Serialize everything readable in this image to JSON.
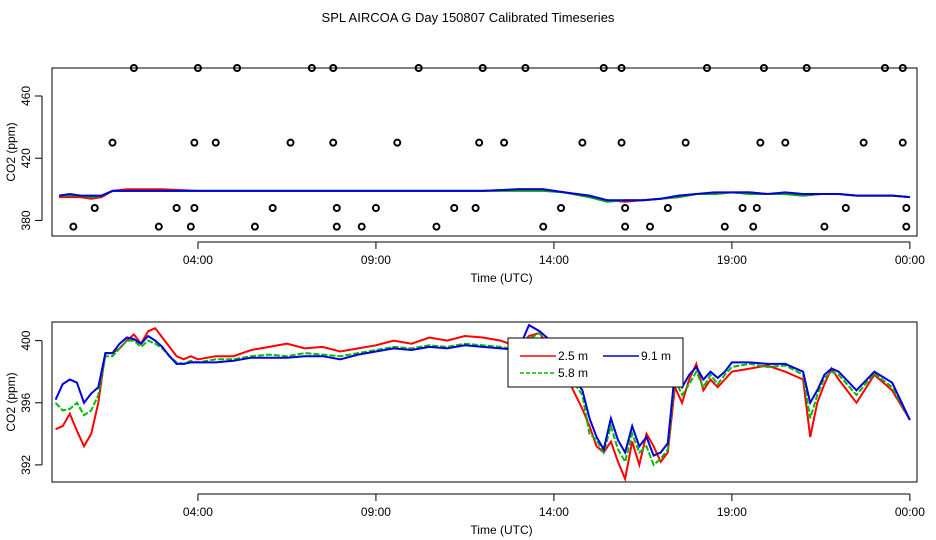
{
  "figure": {
    "title": "SPL AIRCOA G  Day 150807  Calibrated Timeseries"
  },
  "chart_data": [
    {
      "type": "line",
      "xlabel": "Time (UTC)",
      "ylabel": "CO2 (ppm)",
      "x_tick_labels": [
        "04:00",
        "09:00",
        "14:00",
        "19:00",
        "00:00"
      ],
      "x_tick_hours": [
        4,
        9,
        14,
        19,
        24
      ],
      "xlim_hours": [
        -0.1,
        24.2
      ],
      "ylim": [
        370,
        478
      ],
      "y_ticks": [
        380,
        420,
        460
      ],
      "series": [
        {
          "color": "#ff0000",
          "x": [
            0.1,
            0.4,
            0.7,
            1.0,
            1.3,
            1.6,
            2.0,
            3.0,
            4.0,
            5.0,
            6.0,
            7.0,
            8.0,
            9.0,
            10.0,
            11.0,
            12.0,
            13.0,
            13.7,
            14.3,
            15.0,
            15.5,
            16.0,
            16.5,
            17.0,
            17.5,
            18.0,
            18.5,
            19.0,
            19.5,
            20.0,
            20.5,
            21.0,
            21.5,
            22.0,
            22.5,
            23.0,
            23.5,
            24.0
          ],
          "values": [
            395,
            395,
            395,
            394,
            395,
            399,
            400,
            400,
            399,
            399,
            399,
            399,
            399,
            399,
            399,
            399,
            399,
            400,
            400,
            398,
            395,
            393,
            392,
            393,
            394,
            395,
            397,
            397,
            398,
            398,
            397,
            397,
            396,
            397,
            397,
            396,
            396,
            396,
            395
          ]
        },
        {
          "color": "#00aa00",
          "x": [
            0.1,
            0.4,
            0.7,
            1.0,
            1.3,
            1.6,
            2.0,
            3.0,
            4.0,
            5.0,
            6.0,
            7.0,
            8.0,
            9.0,
            10.0,
            11.0,
            12.0,
            13.0,
            13.7,
            14.3,
            15.0,
            15.5,
            16.0,
            16.5,
            17.0,
            17.5,
            18.0,
            18.5,
            19.0,
            19.5,
            20.0,
            20.5,
            21.0,
            21.5,
            22.0,
            22.5,
            23.0,
            23.5,
            24.0
          ],
          "values": [
            396,
            396,
            396,
            395,
            396,
            399,
            399,
            399,
            399,
            399,
            399,
            399,
            399,
            399,
            399,
            399,
            399,
            399,
            399,
            398,
            395,
            392,
            393,
            393,
            394,
            395,
            397,
            397,
            398,
            397,
            397,
            397,
            396,
            397,
            397,
            396,
            396,
            396,
            395
          ]
        },
        {
          "color": "#0000dd",
          "x": [
            0.1,
            0.4,
            0.7,
            1.0,
            1.3,
            1.6,
            2.0,
            3.0,
            4.0,
            5.0,
            6.0,
            7.0,
            8.0,
            9.0,
            10.0,
            11.0,
            12.0,
            13.0,
            13.7,
            14.3,
            15.0,
            15.5,
            16.0,
            16.5,
            17.0,
            17.5,
            18.0,
            18.5,
            19.0,
            19.5,
            20.0,
            20.5,
            21.0,
            21.5,
            22.0,
            22.5,
            23.0,
            23.5,
            24.0
          ],
          "values": [
            396,
            397,
            396,
            396,
            396,
            399,
            399,
            399,
            399,
            399,
            399,
            399,
            399,
            399,
            399,
            399,
            399,
            400,
            400,
            398,
            396,
            393,
            393,
            393,
            394,
            396,
            397,
            398,
            398,
            398,
            397,
            398,
            397,
            397,
            397,
            396,
            396,
            396,
            395
          ]
        }
      ],
      "points": [
        {
          "x": 0.5,
          "y": 376
        },
        {
          "x": 1.1,
          "y": 388
        },
        {
          "x": 1.6,
          "y": 430
        },
        {
          "x": 2.2,
          "y": 478
        },
        {
          "x": 2.9,
          "y": 376
        },
        {
          "x": 3.4,
          "y": 388
        },
        {
          "x": 3.8,
          "y": 376
        },
        {
          "x": 3.9,
          "y": 388
        },
        {
          "x": 3.9,
          "y": 430
        },
        {
          "x": 4.0,
          "y": 478
        },
        {
          "x": 4.5,
          "y": 430
        },
        {
          "x": 5.1,
          "y": 478
        },
        {
          "x": 5.6,
          "y": 376
        },
        {
          "x": 6.1,
          "y": 388
        },
        {
          "x": 6.6,
          "y": 430
        },
        {
          "x": 7.2,
          "y": 478
        },
        {
          "x": 7.8,
          "y": 478
        },
        {
          "x": 7.8,
          "y": 430
        },
        {
          "x": 7.9,
          "y": 388
        },
        {
          "x": 7.9,
          "y": 376
        },
        {
          "x": 8.6,
          "y": 376
        },
        {
          "x": 9.0,
          "y": 388
        },
        {
          "x": 9.6,
          "y": 430
        },
        {
          "x": 10.2,
          "y": 478
        },
        {
          "x": 10.7,
          "y": 376
        },
        {
          "x": 11.2,
          "y": 388
        },
        {
          "x": 11.8,
          "y": 388
        },
        {
          "x": 11.9,
          "y": 430
        },
        {
          "x": 12.0,
          "y": 478
        },
        {
          "x": 12.6,
          "y": 430
        },
        {
          "x": 13.2,
          "y": 478
        },
        {
          "x": 13.7,
          "y": 376
        },
        {
          "x": 14.2,
          "y": 388
        },
        {
          "x": 14.8,
          "y": 430
        },
        {
          "x": 15.4,
          "y": 478
        },
        {
          "x": 15.9,
          "y": 478
        },
        {
          "x": 15.9,
          "y": 430
        },
        {
          "x": 16.0,
          "y": 388
        },
        {
          "x": 16.0,
          "y": 376
        },
        {
          "x": 16.7,
          "y": 376
        },
        {
          "x": 17.2,
          "y": 388
        },
        {
          "x": 17.7,
          "y": 430
        },
        {
          "x": 18.3,
          "y": 478
        },
        {
          "x": 18.8,
          "y": 376
        },
        {
          "x": 19.3,
          "y": 388
        },
        {
          "x": 19.6,
          "y": 376
        },
        {
          "x": 19.7,
          "y": 388
        },
        {
          "x": 19.8,
          "y": 430
        },
        {
          "x": 19.9,
          "y": 478
        },
        {
          "x": 20.5,
          "y": 430
        },
        {
          "x": 21.1,
          "y": 478
        },
        {
          "x": 21.6,
          "y": 376
        },
        {
          "x": 22.2,
          "y": 388
        },
        {
          "x": 22.7,
          "y": 430
        },
        {
          "x": 23.3,
          "y": 478
        },
        {
          "x": 23.8,
          "y": 478
        },
        {
          "x": 23.8,
          "y": 430
        },
        {
          "x": 23.9,
          "y": 388
        },
        {
          "x": 23.9,
          "y": 376
        }
      ]
    },
    {
      "type": "line",
      "xlabel": "Time (UTC)",
      "ylabel": "CO2 (ppm)",
      "x_tick_labels": [
        "04:00",
        "09:00",
        "14:00",
        "19:00",
        "00:00"
      ],
      "x_tick_hours": [
        4,
        9,
        14,
        19,
        24
      ],
      "xlim_hours": [
        -0.1,
        24.2
      ],
      "ylim": [
        390.9,
        401.2
      ],
      "y_ticks": [
        392,
        396,
        400
      ],
      "legend_placement": "top-center-right",
      "series": [
        {
          "name": "2.5 m",
          "color": "#ff0000",
          "x": [
            0.0,
            0.2,
            0.4,
            0.6,
            0.8,
            1.0,
            1.2,
            1.4,
            1.6,
            1.8,
            2.0,
            2.2,
            2.4,
            2.6,
            2.8,
            3.0,
            3.2,
            3.4,
            3.6,
            3.8,
            4.0,
            4.5,
            5.0,
            5.5,
            6.0,
            6.5,
            7.0,
            7.5,
            8.0,
            8.5,
            9.0,
            9.5,
            10.0,
            10.5,
            11.0,
            11.5,
            12.0,
            12.5,
            13.0,
            13.3,
            13.6,
            13.9,
            14.2,
            14.5,
            14.8,
            15.0,
            15.2,
            15.4,
            15.6,
            15.8,
            16.0,
            16.2,
            16.4,
            16.6,
            16.8,
            17.0,
            17.2,
            17.4,
            17.6,
            17.8,
            18.0,
            18.2,
            18.4,
            18.6,
            18.8,
            19.0,
            19.5,
            20.0,
            20.5,
            21.0,
            21.2,
            21.4,
            21.6,
            21.8,
            22.0,
            22.5,
            23.0,
            23.5,
            24.0
          ],
          "values": [
            394.3,
            394.5,
            395.3,
            394.2,
            393.2,
            394.0,
            396.0,
            399.2,
            399.2,
            399.5,
            400.0,
            400.4,
            399.8,
            400.6,
            400.8,
            400.2,
            399.6,
            399.0,
            398.8,
            399.0,
            398.8,
            399.0,
            399.0,
            399.4,
            399.6,
            399.8,
            399.5,
            399.6,
            399.3,
            399.5,
            399.7,
            400.0,
            399.8,
            400.2,
            400.0,
            400.3,
            400.2,
            400.0,
            399.6,
            400.3,
            400.5,
            399.3,
            398.0,
            397.0,
            395.6,
            394.5,
            393.2,
            392.8,
            393.5,
            392.2,
            391.1,
            393.5,
            392.0,
            394.0,
            393.2,
            392.2,
            392.8,
            397.0,
            396.0,
            397.5,
            398.5,
            396.8,
            397.5,
            397.0,
            397.5,
            398.0,
            398.2,
            398.4,
            398.0,
            397.5,
            393.8,
            396.0,
            397.2,
            398.2,
            397.5,
            396.0,
            397.8,
            396.8,
            394.9
          ]
        },
        {
          "name": "5.8 m",
          "color": "#00bb00",
          "x": [
            0.0,
            0.2,
            0.4,
            0.6,
            0.8,
            1.0,
            1.2,
            1.4,
            1.6,
            1.8,
            2.0,
            2.2,
            2.4,
            2.6,
            2.8,
            3.0,
            3.2,
            3.4,
            3.6,
            3.8,
            4.0,
            4.5,
            5.0,
            5.5,
            6.0,
            6.5,
            7.0,
            7.5,
            8.0,
            8.5,
            9.0,
            9.5,
            10.0,
            10.5,
            11.0,
            11.5,
            12.0,
            12.5,
            13.0,
            13.3,
            13.6,
            13.9,
            14.2,
            14.5,
            14.8,
            15.0,
            15.2,
            15.4,
            15.6,
            15.8,
            16.0,
            16.2,
            16.4,
            16.6,
            16.8,
            17.0,
            17.2,
            17.4,
            17.6,
            17.8,
            18.0,
            18.2,
            18.4,
            18.6,
            18.8,
            19.0,
            19.5,
            20.0,
            20.5,
            21.0,
            21.2,
            21.4,
            21.6,
            21.8,
            22.0,
            22.5,
            23.0,
            23.5,
            24.0
          ],
          "values": [
            396.0,
            395.5,
            395.6,
            396.0,
            395.2,
            395.5,
            396.5,
            399.0,
            399.0,
            399.5,
            400.0,
            400.0,
            399.6,
            400.0,
            399.8,
            399.5,
            399.0,
            398.6,
            398.5,
            398.7,
            398.6,
            398.8,
            398.8,
            399.0,
            399.1,
            399.0,
            399.2,
            399.1,
            399.0,
            399.2,
            399.4,
            399.6,
            399.5,
            399.7,
            399.6,
            399.8,
            399.7,
            399.6,
            399.4,
            400.1,
            400.5,
            399.6,
            398.6,
            397.5,
            396.5,
            394.0,
            393.6,
            392.8,
            394.5,
            393.0,
            392.2,
            394.0,
            392.8,
            393.2,
            392.0,
            392.4,
            393.0,
            397.5,
            396.5,
            397.2,
            398.0,
            397.0,
            397.8,
            397.2,
            397.8,
            398.3,
            398.5,
            398.3,
            398.4,
            397.8,
            395.0,
            396.5,
            397.6,
            398.0,
            397.8,
            396.5,
            397.9,
            397.0,
            394.9
          ]
        },
        {
          "name": "9.1 m",
          "color": "#0000dd",
          "x": [
            0.0,
            0.2,
            0.4,
            0.6,
            0.8,
            1.0,
            1.2,
            1.4,
            1.6,
            1.8,
            2.0,
            2.2,
            2.4,
            2.6,
            2.8,
            3.0,
            3.2,
            3.4,
            3.6,
            3.8,
            4.0,
            4.5,
            5.0,
            5.5,
            6.0,
            6.5,
            7.0,
            7.5,
            8.0,
            8.5,
            9.0,
            9.5,
            10.0,
            10.5,
            11.0,
            11.5,
            12.0,
            12.5,
            13.0,
            13.3,
            13.6,
            13.9,
            14.2,
            14.5,
            14.8,
            15.0,
            15.2,
            15.4,
            15.6,
            15.8,
            16.0,
            16.2,
            16.4,
            16.6,
            16.8,
            17.0,
            17.2,
            17.4,
            17.6,
            17.8,
            18.0,
            18.2,
            18.4,
            18.6,
            18.8,
            19.0,
            19.5,
            20.0,
            20.5,
            21.0,
            21.2,
            21.4,
            21.6,
            21.8,
            22.0,
            22.5,
            23.0,
            23.5,
            24.0
          ],
          "values": [
            396.2,
            397.2,
            397.5,
            397.3,
            396.0,
            396.6,
            397.0,
            399.2,
            399.2,
            399.8,
            400.2,
            400.1,
            399.8,
            400.3,
            400.0,
            399.6,
            399.0,
            398.5,
            398.5,
            398.6,
            398.6,
            398.6,
            398.7,
            398.9,
            398.9,
            398.9,
            399.0,
            399.0,
            398.8,
            399.1,
            399.3,
            399.5,
            399.4,
            399.6,
            399.5,
            399.7,
            399.6,
            399.5,
            399.4,
            401.0,
            400.6,
            400.0,
            398.8,
            397.8,
            396.8,
            395.0,
            393.8,
            393.0,
            395.0,
            393.6,
            392.8,
            394.5,
            393.2,
            393.8,
            392.6,
            392.8,
            393.4,
            398.0,
            397.0,
            397.8,
            398.3,
            397.5,
            398.0,
            397.6,
            398.0,
            398.6,
            398.6,
            398.5,
            398.5,
            398.0,
            396.0,
            396.8,
            397.8,
            398.2,
            398.0,
            396.8,
            398.0,
            397.3,
            394.9
          ]
        }
      ]
    }
  ]
}
